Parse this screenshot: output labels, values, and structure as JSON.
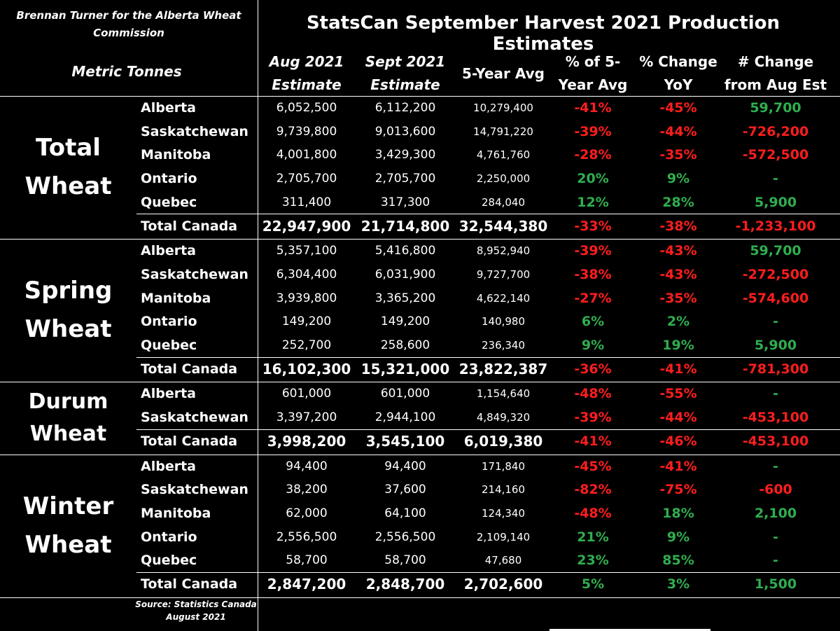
{
  "header": {
    "credit": "Brennan Turner for the Alberta Wheat Commission",
    "units_label": "Metric Tonnes",
    "title": "StatsCan September Harvest 2021 Production Estimates",
    "columns": [
      {
        "line1": "Aug 2021",
        "line2": "Estimate",
        "italic": true
      },
      {
        "line1": "Sept 2021",
        "line2": "Estimate",
        "italic": true
      },
      {
        "line1": "5-Year Avg",
        "line2": "",
        "italic": false
      },
      {
        "line1": "% of 5-",
        "line2": "Year Avg",
        "italic": false
      },
      {
        "line1": "% Change",
        "line2": "YoY",
        "italic": false
      },
      {
        "line1": "# Change",
        "line2": "from Aug Est",
        "italic": false
      }
    ]
  },
  "footer": {
    "source_line1": "Source: Statistics Canada",
    "source_line2": "August 2021"
  },
  "colors": {
    "negative": "#ff1d1d",
    "positive": "#2fae4f",
    "neutral": "#2fae4f"
  },
  "chart_data": {
    "type": "table",
    "title": "StatsCan September Harvest 2021 Production Estimates",
    "columns": [
      "Aug 2021 Estimate",
      "Sept 2021 Estimate",
      "5-Year Avg",
      "% of 5-Year Avg",
      "% Change YoY",
      "# Change from Aug Est"
    ],
    "groups": [
      {
        "name_line1": "Total",
        "name_line2": "Wheat",
        "rows": [
          {
            "province": "Alberta",
            "aug": "6,052,500",
            "sept": "6,112,200",
            "avg": "10,279,400",
            "pct_avg": "-41%",
            "yoy": "-45%",
            "change": "59,700"
          },
          {
            "province": "Saskatchewan",
            "aug": "9,739,800",
            "sept": "9,013,600",
            "avg": "14,791,220",
            "pct_avg": "-39%",
            "yoy": "-44%",
            "change": "-726,200"
          },
          {
            "province": "Manitoba",
            "aug": "4,001,800",
            "sept": "3,429,300",
            "avg": "4,761,760",
            "pct_avg": "-28%",
            "yoy": "-35%",
            "change": "-572,500"
          },
          {
            "province": "Ontario",
            "aug": "2,705,700",
            "sept": "2,705,700",
            "avg": "2,250,000",
            "pct_avg": "20%",
            "yoy": "9%",
            "change": "-"
          },
          {
            "province": "Quebec",
            "aug": "311,400",
            "sept": "317,300",
            "avg": "284,040",
            "pct_avg": "12%",
            "yoy": "28%",
            "change": "5,900"
          },
          {
            "province": "Total Canada",
            "aug": "22,947,900",
            "sept": "21,714,800",
            "avg": "32,544,380",
            "pct_avg": "-33%",
            "yoy": "-38%",
            "change": "-1,233,100",
            "total": true
          }
        ]
      },
      {
        "name_line1": "Spring",
        "name_line2": "Wheat",
        "rows": [
          {
            "province": "Alberta",
            "aug": "5,357,100",
            "sept": "5,416,800",
            "avg": "8,952,940",
            "pct_avg": "-39%",
            "yoy": "-43%",
            "change": "59,700"
          },
          {
            "province": "Saskatchewan",
            "aug": "6,304,400",
            "sept": "6,031,900",
            "avg": "9,727,700",
            "pct_avg": "-38%",
            "yoy": "-43%",
            "change": "-272,500"
          },
          {
            "province": "Manitoba",
            "aug": "3,939,800",
            "sept": "3,365,200",
            "avg": "4,622,140",
            "pct_avg": "-27%",
            "yoy": "-35%",
            "change": "-574,600"
          },
          {
            "province": "Ontario",
            "aug": "149,200",
            "sept": "149,200",
            "avg": "140,980",
            "pct_avg": "6%",
            "yoy": "2%",
            "change": "-"
          },
          {
            "province": "Quebec",
            "aug": "252,700",
            "sept": "258,600",
            "avg": "236,340",
            "pct_avg": "9%",
            "yoy": "19%",
            "change": "5,900"
          },
          {
            "province": "Total Canada",
            "aug": "16,102,300",
            "sept": "15,321,000",
            "avg": "23,822,387",
            "pct_avg": "-36%",
            "yoy": "-41%",
            "change": "-781,300",
            "total": true
          }
        ]
      },
      {
        "name_line1": "Durum",
        "name_line2": "Wheat",
        "rows": [
          {
            "province": "Alberta",
            "aug": "601,000",
            "sept": "601,000",
            "avg": "1,154,640",
            "pct_avg": "-48%",
            "yoy": "-55%",
            "change": "-"
          },
          {
            "province": "Saskatchewan",
            "aug": "3,397,200",
            "sept": "2,944,100",
            "avg": "4,849,320",
            "pct_avg": "-39%",
            "yoy": "-44%",
            "change": "-453,100"
          },
          {
            "province": "Total Canada",
            "aug": "3,998,200",
            "sept": "3,545,100",
            "avg": "6,019,380",
            "pct_avg": "-41%",
            "yoy": "-46%",
            "change": "-453,100",
            "total": true
          }
        ]
      },
      {
        "name_line1": "Winter",
        "name_line2": "Wheat",
        "rows": [
          {
            "province": "Alberta",
            "aug": "94,400",
            "sept": "94,400",
            "avg": "171,840",
            "pct_avg": "-45%",
            "yoy": "-41%",
            "change": "-"
          },
          {
            "province": "Saskatchewan",
            "aug": "38,200",
            "sept": "37,600",
            "avg": "214,160",
            "pct_avg": "-82%",
            "yoy": "-75%",
            "change": "-600"
          },
          {
            "province": "Manitoba",
            "aug": "62,000",
            "sept": "64,100",
            "avg": "124,340",
            "pct_avg": "-48%",
            "yoy": "18%",
            "change": "2,100"
          },
          {
            "province": "Ontario",
            "aug": "2,556,500",
            "sept": "2,556,500",
            "avg": "2,109,140",
            "pct_avg": "21%",
            "yoy": "9%",
            "change": "-"
          },
          {
            "province": "Quebec",
            "aug": "58,700",
            "sept": "58,700",
            "avg": "47,680",
            "pct_avg": "23%",
            "yoy": "85%",
            "change": "-"
          },
          {
            "province": "Total Canada",
            "aug": "2,847,200",
            "sept": "2,848,700",
            "avg": "2,702,600",
            "pct_avg": "5%",
            "yoy": "3%",
            "change": "1,500",
            "total": true
          }
        ]
      }
    ]
  }
}
